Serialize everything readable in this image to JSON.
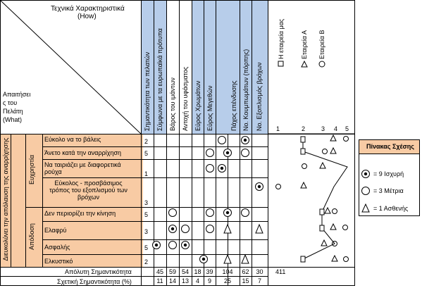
{
  "header": {
    "technical_title": "Τεχνικά Χαρακτηριστικά",
    "technical_sub": "(How)",
    "customer_req": [
      "Απαιτήσει",
      "ς του",
      "Πελάτη",
      "(What)"
    ]
  },
  "columns": [
    {
      "label": "Σημαντικότητα των πελατών",
      "blue": true
    },
    {
      "label": "Σύμφωνα με τα ευρωπαϊκά πρότυπα",
      "blue": true
    },
    {
      "label": "Βάρος του ιμάντων",
      "blue": false
    },
    {
      "label": "Αντοχή του υφάσματος",
      "blue": false
    },
    {
      "label": "Εύρος Χρωμάτων",
      "blue": true
    },
    {
      "label": "Εύρος Μεγεθών",
      "blue": true
    },
    {
      "label": "Πάχος επένδυσης",
      "blue": true
    },
    {
      "label": "Νο. Κουμπωμάτων (πόρπης)",
      "blue": true
    },
    {
      "label": "Νο. Εξοπλισμός βρόχων",
      "blue": true
    }
  ],
  "companies": [
    {
      "symbol": "square",
      "label": "Η εταιρεία μας"
    },
    {
      "symbol": "triangle",
      "label": "Εταιρεία Α"
    },
    {
      "symbol": "circle",
      "label": "Εταιρεία Β"
    }
  ],
  "scale": [
    "1",
    "2",
    "3",
    "4",
    "5"
  ],
  "groups": [
    {
      "label": "Ευχρηστία"
    },
    {
      "label": "Απόδοση"
    }
  ],
  "outer_group": "Διευκολύνει την απόλαυση της αναρρίχησης",
  "rows": [
    {
      "label": "Εύκολο να το βάλεις",
      "imp": "2"
    },
    {
      "label": "Άνετο κατά την αναρρίχηση",
      "imp": "5"
    },
    {
      "label": "Να ταιριάζει με διαφορετικά ρούχα",
      "imp": "1"
    },
    {
      "label": "Εύκολος - προσβάσιμος τρόπος του εξοπλισμού των βρόχων",
      "imp": "3"
    },
    {
      "label": "Δεν περιορίζει την κίνηση",
      "imp": "5"
    },
    {
      "label": "Ελαφρύ",
      "imp": "3"
    },
    {
      "label": "Ασφαλής",
      "imp": "5"
    },
    {
      "label": "Ελκυστικό",
      "imp": "2"
    }
  ],
  "totals": {
    "absolute_label": "Απόλυτη Σημαντικότητα",
    "absolute": [
      "45",
      "59",
      "54",
      "18",
      "39",
      "104",
      "62",
      "30"
    ],
    "absolute_total": "411",
    "relative_label": "Σχετική Σημαντικότητα (%)",
    "relative": [
      "11",
      "14",
      "13",
      "4",
      "9",
      "25",
      "15",
      "7"
    ]
  },
  "legend": {
    "title": "Πίνακας Σχέσης",
    "strong": "= 9 Ισχυρή",
    "medium": "= 3 Μέτρια",
    "weak": "= 1 Ασθενής"
  }
}
